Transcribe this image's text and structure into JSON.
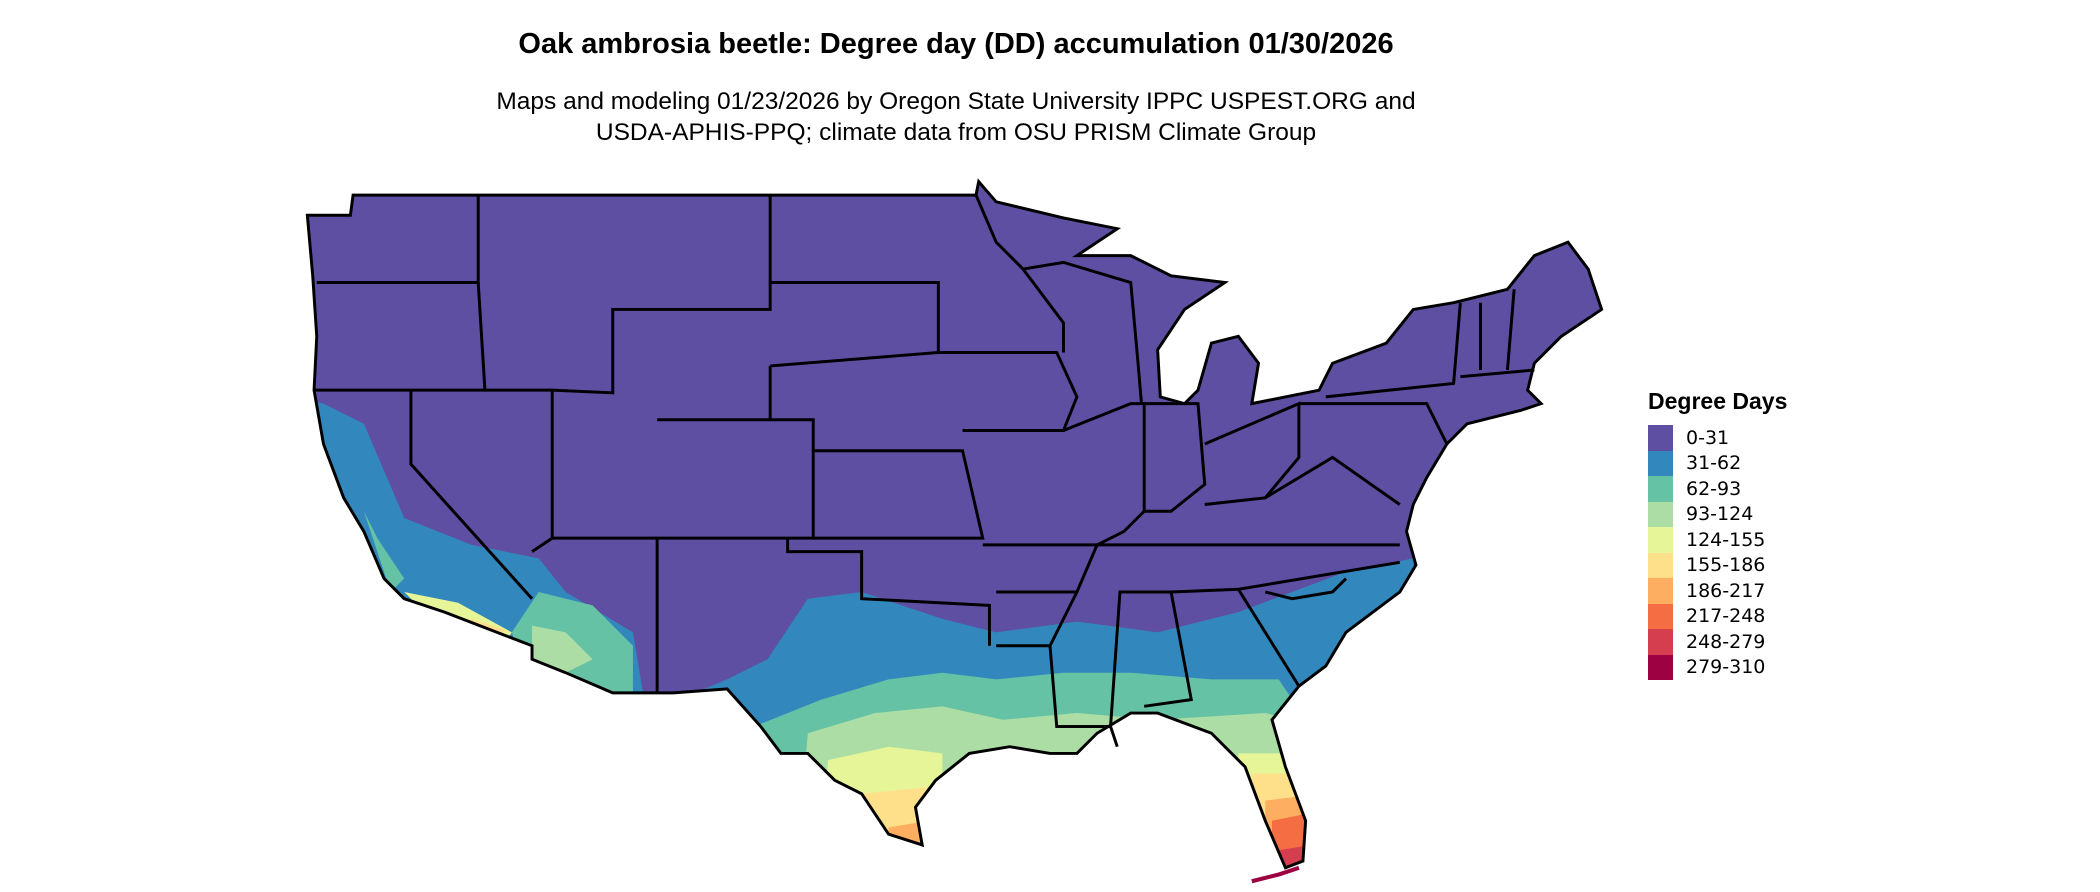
{
  "title": "Oak ambrosia beetle: Degree day (DD) accumulation 01/30/2026",
  "subtitle_line1": "Maps and modeling 01/23/2026 by Oregon State University IPPC USPEST.ORG and",
  "subtitle_line2": "USDA-APHIS-PPQ; climate data from OSU PRISM Climate Group",
  "legend": {
    "title": "Degree Days",
    "items": [
      {
        "label": "0-31",
        "color": "#5E4FA2"
      },
      {
        "label": "31-62",
        "color": "#3288BD"
      },
      {
        "label": "62-93",
        "color": "#66C2A5"
      },
      {
        "label": "93-124",
        "color": "#ABDDA4"
      },
      {
        "label": "124-155",
        "color": "#E6F598"
      },
      {
        "label": "155-186",
        "color": "#FEE08B"
      },
      {
        "label": "186-217",
        "color": "#FDAE61"
      },
      {
        "label": "217-248",
        "color": "#F46D43"
      },
      {
        "label": "248-279",
        "color": "#D53E4F"
      },
      {
        "label": "279-310",
        "color": "#9E0142"
      }
    ]
  },
  "map": {
    "region": "Contiguous United States",
    "border_color": "#000000"
  }
}
